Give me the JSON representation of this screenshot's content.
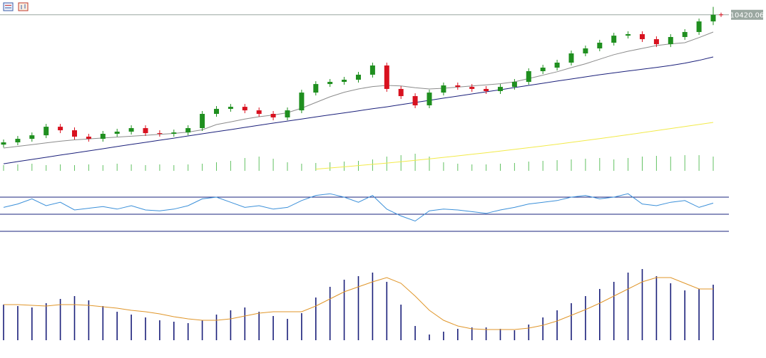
{
  "chart_data": [
    {
      "type": "candlestick",
      "ylim": [
        9050,
        10550
      ],
      "up_color": "#1f8f1f",
      "down_color": "#d8111f",
      "last_line_color": "#9aa7a0",
      "open": [
        9280,
        9300,
        9331,
        9362,
        9437,
        9406,
        9350,
        9331,
        9375,
        9394,
        9425,
        9381,
        9375,
        9387,
        9425,
        9550,
        9594,
        9612,
        9581,
        9550,
        9519,
        9581,
        9737,
        9812,
        9831,
        9850,
        9894,
        9975,
        9769,
        9706,
        9625,
        9737,
        9800,
        9787,
        9769,
        9750,
        9787,
        9831,
        9925,
        9956,
        10000,
        10081,
        10125,
        10175,
        10237,
        10250,
        10206,
        10162,
        10225,
        10269,
        10362
      ],
      "high": [
        9325,
        9356,
        9387,
        9462,
        9462,
        9431,
        9375,
        9400,
        9419,
        9450,
        9450,
        9406,
        9412,
        9450,
        9575,
        9619,
        9637,
        9637,
        9606,
        9575,
        9606,
        9762,
        9837,
        9856,
        9875,
        9919,
        10000,
        10000,
        9794,
        9731,
        9762,
        9825,
        9825,
        9812,
        9794,
        9812,
        9856,
        9950,
        9981,
        10025,
        10106,
        10150,
        10200,
        10262,
        10275,
        10275,
        10231,
        10250,
        10294,
        10387,
        10490
      ],
      "low": [
        9255,
        9275,
        9306,
        9337,
        9381,
        9325,
        9306,
        9306,
        9350,
        9369,
        9356,
        9350,
        9350,
        9362,
        9400,
        9525,
        9569,
        9556,
        9525,
        9494,
        9494,
        9556,
        9712,
        9787,
        9806,
        9825,
        9869,
        9744,
        9681,
        9600,
        9600,
        9712,
        9762,
        9744,
        9725,
        9725,
        9762,
        9806,
        9900,
        9931,
        9975,
        10056,
        10100,
        10150,
        10212,
        10181,
        10137,
        10137,
        10200,
        10244,
        10330
      ],
      "close": [
        9300,
        9331,
        9362,
        9437,
        9406,
        9350,
        9331,
        9375,
        9394,
        9425,
        9381,
        9375,
        9387,
        9425,
        9550,
        9594,
        9612,
        9581,
        9550,
        9519,
        9581,
        9737,
        9812,
        9831,
        9850,
        9894,
        9975,
        9769,
        9706,
        9625,
        9737,
        9800,
        9787,
        9769,
        9750,
        9787,
        9831,
        9925,
        9956,
        10000,
        10081,
        10125,
        10175,
        10237,
        10250,
        10206,
        10162,
        10225,
        10269,
        10362,
        10420.06
      ],
      "lines": [
        {
          "color": "#8c8c8c",
          "values": [
            9250,
            9265,
            9280,
            9295,
            9310,
            9322,
            9330,
            9338,
            9346,
            9354,
            9362,
            9370,
            9378,
            9390,
            9410,
            9456,
            9480,
            9505,
            9525,
            9540,
            9560,
            9600,
            9650,
            9700,
            9740,
            9769,
            9790,
            9800,
            9795,
            9780,
            9769,
            9775,
            9785,
            9795,
            9805,
            9815,
            9831,
            9860,
            9890,
            9920,
            9956,
            9990,
            10030,
            10070,
            10100,
            10125,
            10150,
            10165,
            10175,
            10220,
            10269
          ]
        },
        {
          "color": "#1a1f7a",
          "values": [
            9112,
            9131,
            9150,
            9169,
            9188,
            9206,
            9225,
            9244,
            9263,
            9282,
            9300,
            9319,
            9337,
            9356,
            9375,
            9394,
            9412,
            9431,
            9450,
            9469,
            9487,
            9505,
            9523,
            9541,
            9559,
            9577,
            9595,
            9612,
            9631,
            9650,
            9669,
            9688,
            9706,
            9725,
            9744,
            9762,
            9781,
            9800,
            9819,
            9838,
            9856,
            9875,
            9894,
            9910,
            9926,
            9942,
            9958,
            9975,
            9995,
            10020,
            10050
          ]
        },
        {
          "color": "#f2ea4a",
          "values": [
            null,
            null,
            null,
            null,
            null,
            null,
            null,
            null,
            null,
            null,
            null,
            null,
            null,
            null,
            null,
            null,
            null,
            null,
            null,
            null,
            null,
            null,
            9065,
            9075,
            9085,
            9096,
            9107,
            9118,
            9130,
            9142,
            9155,
            9168,
            9181,
            9195,
            9209,
            9223,
            9238,
            9253,
            9268,
            9284,
            9300,
            9316,
            9333,
            9350,
            9367,
            9385,
            9403,
            9421,
            9439,
            9457,
            9475
          ]
        }
      ]
    },
    {
      "type": "bar",
      "ylim": [
        0,
        30
      ],
      "color": "#63c263",
      "values": [
        8,
        9,
        10,
        8,
        9,
        8,
        9,
        8,
        10,
        9,
        8,
        9,
        8,
        9,
        10,
        12,
        14,
        18,
        20,
        17,
        12,
        10,
        11,
        12,
        13,
        14,
        16,
        20,
        22,
        24,
        20,
        12,
        10,
        9,
        9,
        10,
        11,
        13,
        14,
        15,
        16,
        17,
        18,
        16,
        18,
        20,
        21,
        20,
        22,
        22,
        20
      ]
    },
    {
      "type": "line",
      "ylim": [
        20,
        80
      ],
      "yticks": [
        30,
        50,
        70
      ],
      "color": "#3a8fd9",
      "level_color": "#1a237e",
      "values": [
        58,
        62,
        68,
        60,
        64,
        55,
        57,
        59,
        56,
        60,
        55,
        54,
        56,
        60,
        68,
        70,
        64,
        58,
        60,
        56,
        58,
        66,
        72,
        74,
        70,
        64,
        72,
        56,
        48,
        42,
        54,
        56,
        55,
        53,
        51,
        55,
        58,
        62,
        64,
        66,
        70,
        72,
        68,
        70,
        74,
        62,
        60,
        64,
        66,
        58,
        63
      ]
    },
    {
      "type": "macd",
      "ylim": [
        0,
        110
      ],
      "histogram": {
        "color": "#1a1f7a",
        "values": [
          50,
          48,
          46,
          52,
          58,
          62,
          56,
          48,
          40,
          36,
          32,
          28,
          26,
          24,
          28,
          36,
          42,
          46,
          40,
          34,
          30,
          38,
          60,
          75,
          85,
          90,
          95,
          82,
          50,
          20,
          8,
          12,
          16,
          18,
          18,
          16,
          14,
          22,
          32,
          42,
          52,
          62,
          72,
          82,
          95,
          100,
          90,
          80,
          70,
          72,
          78
        ]
      },
      "signal": {
        "color": "#e0962a",
        "values": [
          50,
          50,
          49,
          48,
          50,
          50,
          49,
          47,
          45,
          42,
          40,
          37,
          33,
          30,
          28,
          28,
          30,
          34,
          38,
          40,
          40,
          40,
          48,
          58,
          68,
          75,
          82,
          88,
          80,
          62,
          42,
          28,
          20,
          16,
          15,
          15,
          15,
          17,
          21,
          27,
          35,
          43,
          52,
          62,
          72,
          82,
          88,
          88,
          80,
          72,
          72
        ]
      }
    }
  ]
}
